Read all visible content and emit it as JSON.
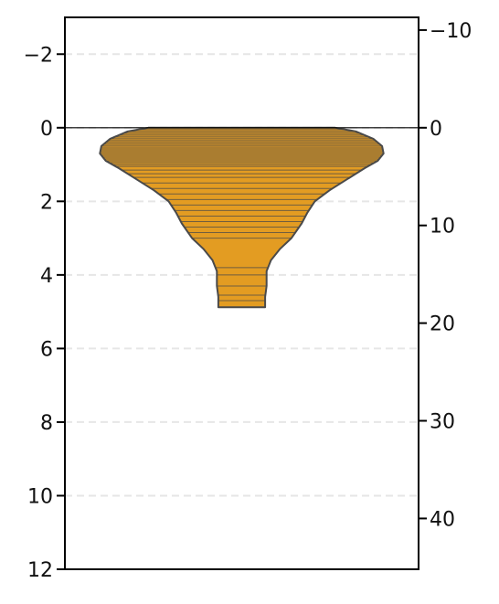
{
  "chart_data": {
    "type": "violin",
    "title": "",
    "xlabel": "",
    "ylabel": "",
    "y_left": {
      "range": [
        -3,
        12
      ],
      "inverted": true,
      "ticks": [
        -2,
        0,
        2,
        4,
        6,
        8,
        10,
        12
      ],
      "tick_labels": [
        "−2",
        "0",
        "2",
        "4",
        "6",
        "8",
        "10",
        "12"
      ]
    },
    "y_right": {
      "range": [
        -11.3,
        45.2
      ],
      "inverted": true,
      "ticks": [
        -10,
        0,
        10,
        20,
        30,
        40
      ],
      "tick_labels": [
        "−10",
        "0",
        "10",
        "20",
        "30",
        "40"
      ]
    },
    "grid": {
      "y": true,
      "style": "dashed",
      "color": "#e6e6e6"
    },
    "reference_line_y": 0,
    "violin": {
      "fill": "#e39c22",
      "edge": "#4a4a4a",
      "profile": [
        {
          "depth": 0.0,
          "half_width": 0.64
        },
        {
          "depth": 0.1,
          "half_width": 0.78
        },
        {
          "depth": 0.3,
          "half_width": 0.9
        },
        {
          "depth": 0.5,
          "half_width": 0.96
        },
        {
          "depth": 0.7,
          "half_width": 0.97
        },
        {
          "depth": 0.9,
          "half_width": 0.93
        },
        {
          "depth": 1.1,
          "half_width": 0.84
        },
        {
          "depth": 1.4,
          "half_width": 0.72
        },
        {
          "depth": 1.7,
          "half_width": 0.6
        },
        {
          "depth": 2.0,
          "half_width": 0.5
        },
        {
          "depth": 2.3,
          "half_width": 0.45
        },
        {
          "depth": 2.6,
          "half_width": 0.41
        },
        {
          "depth": 3.0,
          "half_width": 0.34
        },
        {
          "depth": 3.3,
          "half_width": 0.26
        },
        {
          "depth": 3.6,
          "half_width": 0.2
        },
        {
          "depth": 3.9,
          "half_width": 0.17
        },
        {
          "depth": 4.3,
          "half_width": 0.17
        },
        {
          "depth": 4.6,
          "half_width": 0.16
        },
        {
          "depth": 4.8,
          "half_width": 0.16
        },
        {
          "depth": 4.88,
          "half_width": 0.16
        }
      ],
      "observations": [
        0.05,
        0.1,
        0.15,
        0.2,
        0.25,
        0.3,
        0.35,
        0.4,
        0.45,
        0.5,
        0.55,
        0.6,
        0.65,
        0.7,
        0.75,
        0.8,
        0.85,
        0.9,
        0.95,
        1.0,
        1.05,
        1.15,
        1.25,
        1.35,
        1.5,
        1.65,
        1.8,
        1.95,
        2.1,
        2.25,
        2.4,
        2.55,
        2.7,
        2.85,
        3.0,
        3.8,
        4.0,
        4.3,
        4.55,
        4.7
      ]
    }
  }
}
